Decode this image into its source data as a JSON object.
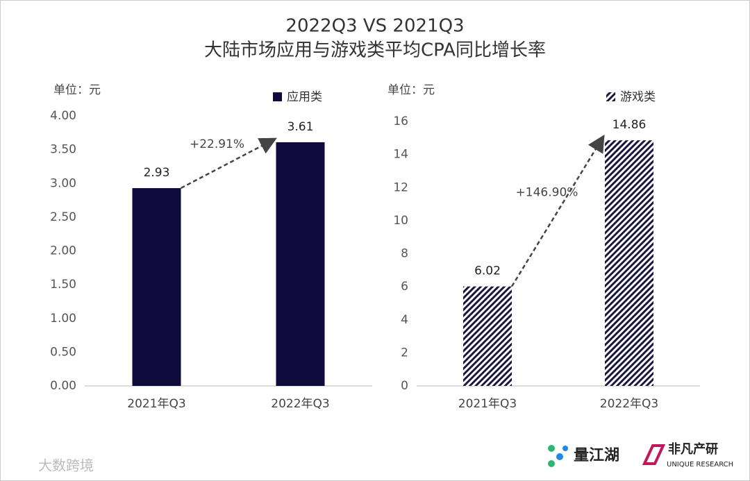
{
  "title": "2022Q3 VS 2021Q3",
  "subtitle": "大陆市场应用与游戏类平均CPA同比增长率",
  "chart_data": [
    {
      "type": "bar",
      "unit_label": "单位：元",
      "annotation": "+22.91%",
      "categories": [
        "2021年Q3",
        "2022年Q3"
      ],
      "series": [
        {
          "name": "应用类",
          "color": "#0f0a3c",
          "values": [
            2.93,
            3.61
          ]
        }
      ],
      "ylim": [
        0,
        4
      ],
      "yticks": [
        {
          "value": 0,
          "label": "0.00"
        },
        {
          "value": 0.5,
          "label": "0.50"
        },
        {
          "value": 1,
          "label": "1.00"
        },
        {
          "value": 1.5,
          "label": "1.50"
        },
        {
          "value": 2,
          "label": "2.00"
        },
        {
          "value": 2.5,
          "label": "2.50"
        },
        {
          "value": 3,
          "label": "3.00"
        },
        {
          "value": 3.5,
          "label": "3.50"
        },
        {
          "value": 4,
          "label": "4.00"
        }
      ]
    },
    {
      "type": "bar",
      "unit_label": "单位：元",
      "annotation": "+146.90%",
      "categories": [
        "2021年Q3",
        "2022年Q3"
      ],
      "series": [
        {
          "name": "游戏类",
          "color": "#1a1640",
          "pattern": "hatch",
          "values": [
            6.02,
            14.86
          ]
        }
      ],
      "ylim": [
        0,
        16
      ],
      "yticks": [
        0,
        2,
        4,
        6,
        8,
        10,
        12,
        14,
        16
      ]
    }
  ],
  "footer": {
    "brand1": "量江湖",
    "brand2": "非凡产研",
    "brand2_sub": "UNIQUE RESEARCH",
    "watermark": "大数跨境"
  }
}
